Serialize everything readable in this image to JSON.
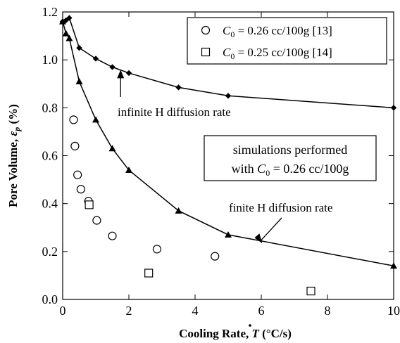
{
  "chart_data": {
    "type": "scatter",
    "xlabel": "Cooling Rate, Ṫ (°C/s)",
    "ylabel": "Pore Volume, εp (%)",
    "xlim": [
      0,
      10
    ],
    "ylim": [
      0.0,
      1.2
    ],
    "x_ticks": [
      "0",
      "2",
      "4",
      "6",
      "8",
      "10"
    ],
    "y_ticks": [
      "0.0",
      "0.2",
      "0.4",
      "0.6",
      "0.8",
      "1.0",
      "1.2"
    ],
    "grid": false,
    "legend_position": "top-right",
    "legend": [
      {
        "label": "C0 = 0.26 cc/100g [13]",
        "marker": "circle-open"
      },
      {
        "label": "C0 = 0.25 cc/100g [14]",
        "marker": "square-open"
      }
    ],
    "series": [
      {
        "marker": "diamond-filled",
        "line": true,
        "x": [
          0,
          0.1,
          0.2,
          0.5,
          1.0,
          1.5,
          2.0,
          3.5,
          5.0,
          10.0
        ],
        "y": [
          1.16,
          1.165,
          1.175,
          1.05,
          1.005,
          0.97,
          0.945,
          0.885,
          0.85,
          0.8
        ]
      },
      {
        "marker": "triangle-filled",
        "line": true,
        "x": [
          0,
          0.1,
          0.2,
          0.5,
          1.0,
          1.5,
          2.0,
          3.5,
          5.0,
          10.0
        ],
        "y": [
          1.16,
          1.11,
          1.09,
          0.91,
          0.75,
          0.63,
          0.54,
          0.37,
          0.27,
          0.14
        ]
      },
      {
        "name": "C0 = 0.26 cc/100g [13]",
        "marker": "circle-open",
        "line": false,
        "x": [
          0.33,
          0.37,
          0.45,
          0.55,
          0.78,
          1.03,
          1.5,
          2.85,
          4.6
        ],
        "y": [
          0.75,
          0.64,
          0.52,
          0.46,
          0.41,
          0.33,
          0.265,
          0.21,
          0.18
        ]
      },
      {
        "name": "C0 = 0.25 cc/100g [14]",
        "marker": "square-open",
        "line": false,
        "x": [
          0.8,
          2.6,
          7.5
        ],
        "y": [
          0.395,
          0.11,
          0.035
        ]
      }
    ],
    "annotations": [
      {
        "text": "infinite H diffusion rate",
        "arrow_to": [
          1.75,
          0.97
        ]
      },
      {
        "text": "finite H diffusion rate",
        "arrow_to": [
          6.2,
          0.24
        ]
      },
      {
        "text_line1": "simulations performed",
        "text_line2": "with C0 = 0.26 cc/100g",
        "boxed": true
      }
    ]
  }
}
